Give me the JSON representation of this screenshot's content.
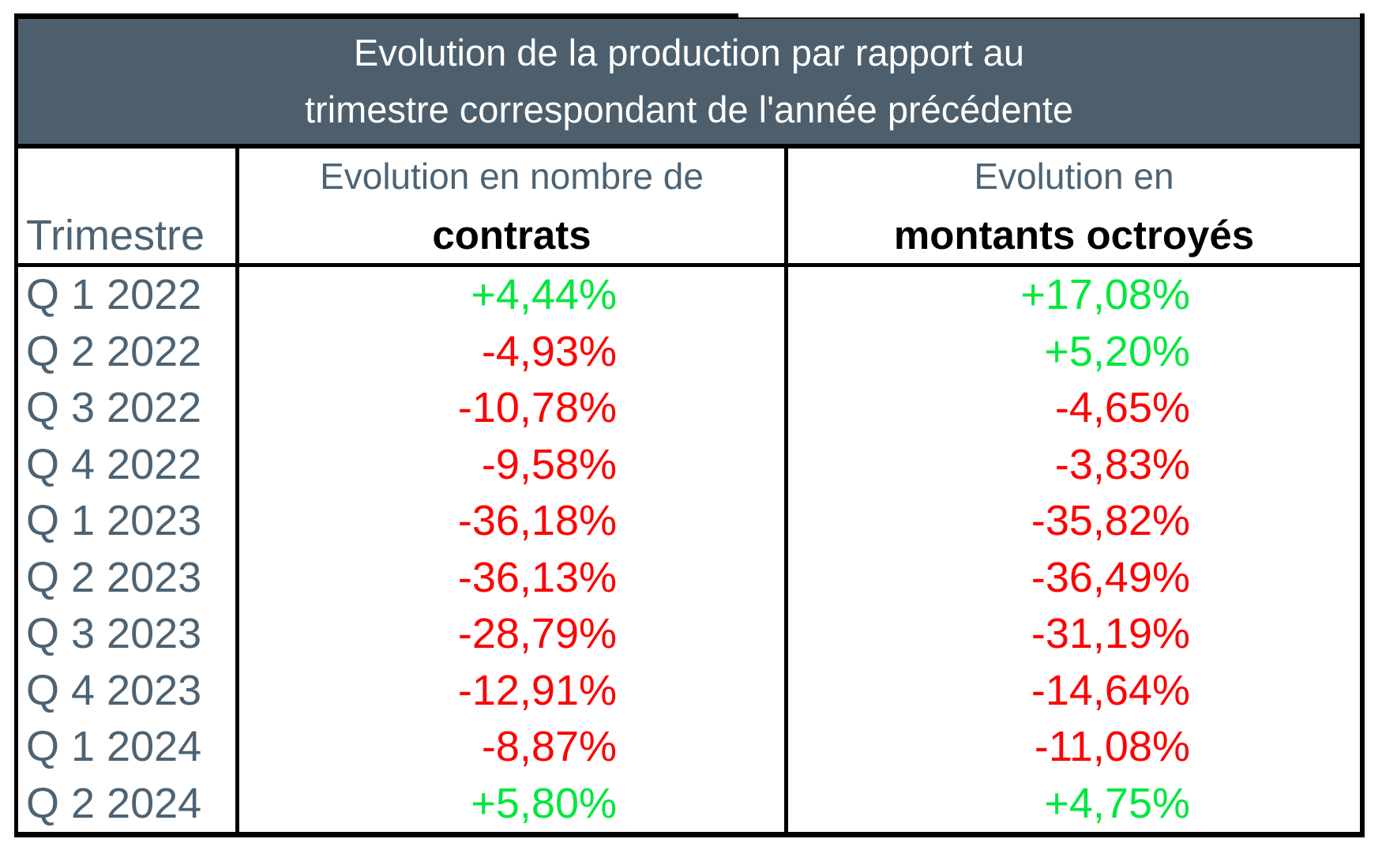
{
  "table": {
    "title_line1": "Evolution de la production par rapport au",
    "title_line2": "trimestre correspondant de l'année précédente",
    "columns": {
      "quarter_header": "Trimestre",
      "col2_line1": "Evolution en nombre de",
      "col2_line2": "contrats",
      "col3_line1": "Evolution en",
      "col3_line2": "montants octroyés"
    },
    "rows": [
      {
        "quarter": "Q 1 2022",
        "contracts": "+4,44%",
        "amounts": "+17,08%"
      },
      {
        "quarter": "Q 2 2022",
        "contracts": "-4,93%",
        "amounts": "+5,20%"
      },
      {
        "quarter": "Q 3 2022",
        "contracts": "-10,78%",
        "amounts": "-4,65%"
      },
      {
        "quarter": "Q 4 2022",
        "contracts": "-9,58%",
        "amounts": "-3,83%"
      },
      {
        "quarter": "Q 1 2023",
        "contracts": "-36,18%",
        "amounts": "-35,82%"
      },
      {
        "quarter": "Q 2 2023",
        "contracts": "-36,13%",
        "amounts": "-36,49%"
      },
      {
        "quarter": "Q 3 2023",
        "contracts": "-28,79%",
        "amounts": "-31,19%"
      },
      {
        "quarter": "Q 4 2023",
        "contracts": "-12,91%",
        "amounts": "-14,64%"
      },
      {
        "quarter": "Q 1 2024",
        "contracts": "-8,87%",
        "amounts": "-11,08%"
      },
      {
        "quarter": "Q 2 2024",
        "contracts": "+5,80%",
        "amounts": "+4,75%"
      }
    ]
  },
  "colors": {
    "positive": "#00e73c",
    "negative": "#fd0000",
    "header_bg": "#4d5f6d",
    "header_text": "#ffffff",
    "label_text": "#4d6374",
    "border": "#000000"
  },
  "chart_data": {
    "type": "table",
    "title": "Evolution de la production par rapport au trimestre correspondant de l'année précédente",
    "categories": [
      "Q 1 2022",
      "Q 2 2022",
      "Q 3 2022",
      "Q 4 2022",
      "Q 1 2023",
      "Q 2 2023",
      "Q 3 2023",
      "Q 4 2023",
      "Q 1 2024",
      "Q 2 2024"
    ],
    "series": [
      {
        "name": "Evolution en nombre de contrats",
        "values": [
          4.44,
          -4.93,
          -10.78,
          -9.58,
          -36.18,
          -36.13,
          -28.79,
          -12.91,
          -8.87,
          5.8
        ]
      },
      {
        "name": "Evolution en montants octroyés",
        "values": [
          17.08,
          5.2,
          -4.65,
          -3.83,
          -35.82,
          -36.49,
          -31.19,
          -14.64,
          -11.08,
          4.75
        ]
      }
    ],
    "unit": "%",
    "value_color_rule": "positive=green, negative=red"
  }
}
